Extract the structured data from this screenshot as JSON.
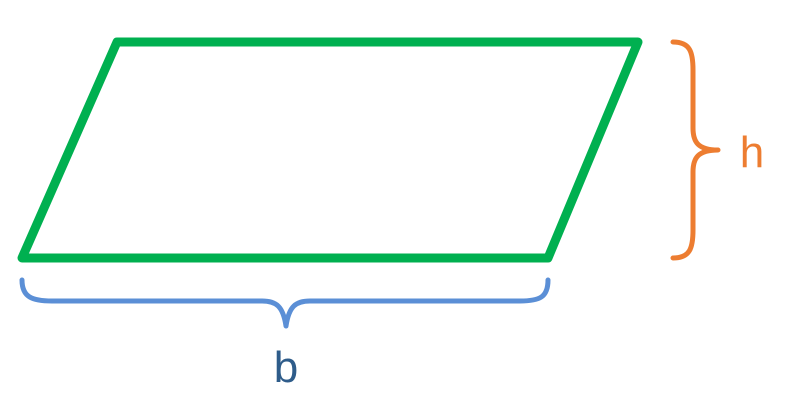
{
  "diagram": {
    "shape": "parallelogram",
    "labels": {
      "height": "h",
      "base": "b"
    },
    "colors": {
      "shape_stroke": "#00B050",
      "height_brace": "#ED7D31",
      "height_label": "#ED7D31",
      "base_brace": "#5B8FD6",
      "base_label": "#2E5C8A"
    }
  }
}
